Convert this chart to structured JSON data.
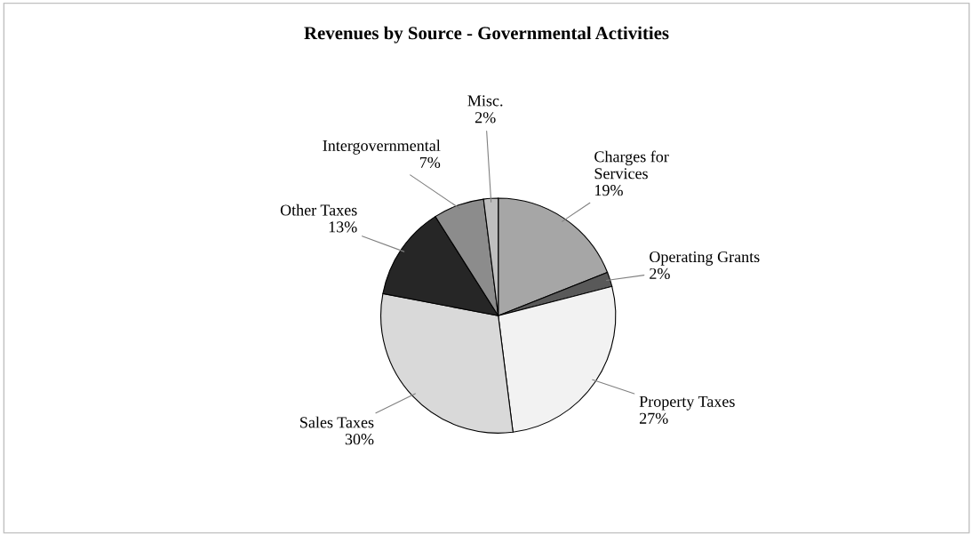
{
  "chart_data": {
    "type": "pie",
    "title": "Revenues by Source - Governmental Activities",
    "categories": [
      "Charges for Services",
      "Operating Grants",
      "Property Taxes",
      "Sales Taxes",
      "Other Taxes",
      "Intergovernmental",
      "Misc."
    ],
    "values": [
      19,
      2,
      27,
      30,
      13,
      7,
      2
    ],
    "value_labels": [
      "19%",
      "2%",
      "27%",
      "30%",
      "13%",
      "7%",
      "2%"
    ],
    "colors": [
      "#a6a6a6",
      "#595959",
      "#f2f2f2",
      "#d9d9d9",
      "#262626",
      "#8c8c8c",
      "#bfbfbf"
    ],
    "legend": false
  }
}
